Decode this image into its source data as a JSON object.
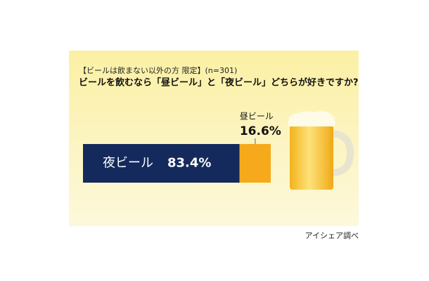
{
  "chart_data": {
    "type": "stacked-bar",
    "subtitle": "【ビールは飲まない以外の方 限定】(n=301)",
    "title": "ビールを飲むなら「昼ビール」と「夜ビール」どちらが好きですか?",
    "series": [
      {
        "name": "夜ビール",
        "color": "#142a5c",
        "values": [
          83.4
        ],
        "value_labels": [
          "83.4%"
        ]
      },
      {
        "name": "昼ビール",
        "color": "#f5a91b",
        "values": [
          16.6
        ],
        "value_labels": [
          "16.6%"
        ]
      }
    ],
    "note": "アイシェア調べ"
  }
}
